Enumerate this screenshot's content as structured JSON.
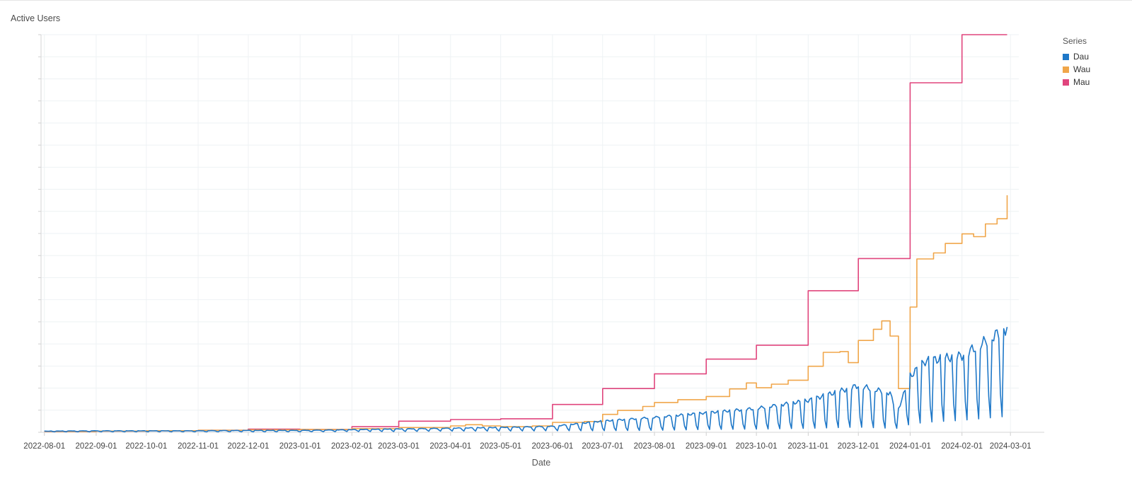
{
  "chart_data": {
    "type": "line",
    "title": "Active Users",
    "xlabel": "Date",
    "ylabel": "",
    "x_ticks": [
      "2022-08-01",
      "2022-09-01",
      "2022-10-01",
      "2022-11-01",
      "2022-12-01",
      "2023-01-01",
      "2023-02-01",
      "2023-03-01",
      "2023-04-01",
      "2023-05-01",
      "2023-06-01",
      "2023-07-01",
      "2023-08-01",
      "2023-09-01",
      "2023-10-01",
      "2023-11-01",
      "2023-12-01",
      "2024-01-01",
      "2024-02-01",
      "2024-03-01"
    ],
    "xlim": [
      "2022-07-30",
      "2024-03-06"
    ],
    "ylim": [
      0,
      1
    ],
    "y_tick_labels_visible": false,
    "grid": true,
    "legend": {
      "title": "Series",
      "placement": "right"
    },
    "series": [
      {
        "name": "Dau",
        "color": "#1f78c8",
        "pattern": "weekly",
        "values": [
          {
            "x": "2022-08-01",
            "weekday": 0.003,
            "weekend": 0.001
          },
          {
            "x": "2022-09-01",
            "weekday": 0.004,
            "weekend": 0.001
          },
          {
            "x": "2022-10-01",
            "weekday": 0.004,
            "weekend": 0.001
          },
          {
            "x": "2022-11-01",
            "weekday": 0.004,
            "weekend": 0.001
          },
          {
            "x": "2022-12-01",
            "weekday": 0.005,
            "weekend": 0.001
          },
          {
            "x": "2023-01-01",
            "weekday": 0.005,
            "weekend": 0.001
          },
          {
            "x": "2023-02-01",
            "weekday": 0.007,
            "weekend": 0.002
          },
          {
            "x": "2023-03-01",
            "weekday": 0.009,
            "weekend": 0.002
          },
          {
            "x": "2023-04-01",
            "weekday": 0.011,
            "weekend": 0.003
          },
          {
            "x": "2023-05-01",
            "weekday": 0.013,
            "weekend": 0.003
          },
          {
            "x": "2023-06-01",
            "weekday": 0.016,
            "weekend": 0.004
          },
          {
            "x": "2023-07-01",
            "weekday": 0.03,
            "weekend": 0.004
          },
          {
            "x": "2023-08-01",
            "weekday": 0.04,
            "weekend": 0.005
          },
          {
            "x": "2023-09-01",
            "weekday": 0.052,
            "weekend": 0.007
          },
          {
            "x": "2023-10-01",
            "weekday": 0.064,
            "weekend": 0.008
          },
          {
            "x": "2023-11-01",
            "weekday": 0.085,
            "weekend": 0.01
          },
          {
            "x": "2023-12-01",
            "weekday": 0.125,
            "weekend": 0.013
          },
          {
            "x": "2023-12-20",
            "weekday": 0.105,
            "weekend": 0.01
          },
          {
            "x": "2023-12-24",
            "weekday": 0.05,
            "weekend": 0.01
          },
          {
            "x": "2024-01-01",
            "weekday": 0.15,
            "weekend": 0.02
          },
          {
            "x": "2024-01-10",
            "weekday": 0.19,
            "weekend": 0.025
          },
          {
            "x": "2024-02-01",
            "weekday": 0.205,
            "weekend": 0.03
          },
          {
            "x": "2024-02-28",
            "weekday": 0.28,
            "weekend": 0.04
          }
        ]
      },
      {
        "name": "Wau",
        "color": "#f0a64a",
        "steps": [
          {
            "x": "2022-08-01",
            "y": 0.002
          },
          {
            "x": "2022-09-01",
            "y": 0.003
          },
          {
            "x": "2022-10-01",
            "y": 0.004
          },
          {
            "x": "2022-11-01",
            "y": 0.005
          },
          {
            "x": "2022-12-01",
            "y": 0.006
          },
          {
            "x": "2023-01-01",
            "y": 0.007
          },
          {
            "x": "2023-02-01",
            "y": 0.009
          },
          {
            "x": "2023-03-01",
            "y": 0.012
          },
          {
            "x": "2023-04-01",
            "y": 0.016
          },
          {
            "x": "2023-04-10",
            "y": 0.019
          },
          {
            "x": "2023-04-20",
            "y": 0.016
          },
          {
            "x": "2023-05-01",
            "y": 0.014
          },
          {
            "x": "2023-05-20",
            "y": 0.016
          },
          {
            "x": "2023-06-01",
            "y": 0.025
          },
          {
            "x": "2023-06-20",
            "y": 0.027
          },
          {
            "x": "2023-07-01",
            "y": 0.045
          },
          {
            "x": "2023-07-10",
            "y": 0.055
          },
          {
            "x": "2023-07-25",
            "y": 0.065
          },
          {
            "x": "2023-08-01",
            "y": 0.075
          },
          {
            "x": "2023-08-15",
            "y": 0.082
          },
          {
            "x": "2023-09-01",
            "y": 0.09
          },
          {
            "x": "2023-09-15",
            "y": 0.109
          },
          {
            "x": "2023-09-25",
            "y": 0.124
          },
          {
            "x": "2023-10-01",
            "y": 0.112
          },
          {
            "x": "2023-10-10",
            "y": 0.121
          },
          {
            "x": "2023-10-20",
            "y": 0.131
          },
          {
            "x": "2023-11-01",
            "y": 0.166
          },
          {
            "x": "2023-11-10",
            "y": 0.201
          },
          {
            "x": "2023-11-20",
            "y": 0.203
          },
          {
            "x": "2023-11-25",
            "y": 0.175
          },
          {
            "x": "2023-12-01",
            "y": 0.231
          },
          {
            "x": "2023-12-10",
            "y": 0.259
          },
          {
            "x": "2023-12-15",
            "y": 0.28
          },
          {
            "x": "2023-12-20",
            "y": 0.242
          },
          {
            "x": "2023-12-25",
            "y": 0.11
          },
          {
            "x": "2024-01-01",
            "y": 0.315
          },
          {
            "x": "2024-01-05",
            "y": 0.436
          },
          {
            "x": "2024-01-15",
            "y": 0.451
          },
          {
            "x": "2024-01-22",
            "y": 0.475
          },
          {
            "x": "2024-02-01",
            "y": 0.499
          },
          {
            "x": "2024-02-08",
            "y": 0.492
          },
          {
            "x": "2024-02-15",
            "y": 0.524
          },
          {
            "x": "2024-02-22",
            "y": 0.537
          },
          {
            "x": "2024-02-28",
            "y": 0.596
          }
        ]
      },
      {
        "name": "Mau",
        "color": "#e0457d",
        "steps": [
          {
            "x": "2022-08-01",
            "y": 0.002
          },
          {
            "x": "2022-09-01",
            "y": 0.003
          },
          {
            "x": "2022-10-01",
            "y": 0.004
          },
          {
            "x": "2022-11-01",
            "y": 0.005
          },
          {
            "x": "2022-12-01",
            "y": 0.008
          },
          {
            "x": "2023-01-01",
            "y": 0.007
          },
          {
            "x": "2023-02-01",
            "y": 0.014
          },
          {
            "x": "2023-03-01",
            "y": 0.028
          },
          {
            "x": "2023-04-01",
            "y": 0.032
          },
          {
            "x": "2023-05-01",
            "y": 0.034
          },
          {
            "x": "2023-06-01",
            "y": 0.07
          },
          {
            "x": "2023-07-01",
            "y": 0.11
          },
          {
            "x": "2023-08-01",
            "y": 0.147
          },
          {
            "x": "2023-09-01",
            "y": 0.184
          },
          {
            "x": "2023-10-01",
            "y": 0.219
          },
          {
            "x": "2023-11-01",
            "y": 0.356
          },
          {
            "x": "2023-12-01",
            "y": 0.437
          },
          {
            "x": "2024-01-01",
            "y": 0.879
          },
          {
            "x": "2024-02-01",
            "y": 1.0
          }
        ]
      }
    ]
  }
}
